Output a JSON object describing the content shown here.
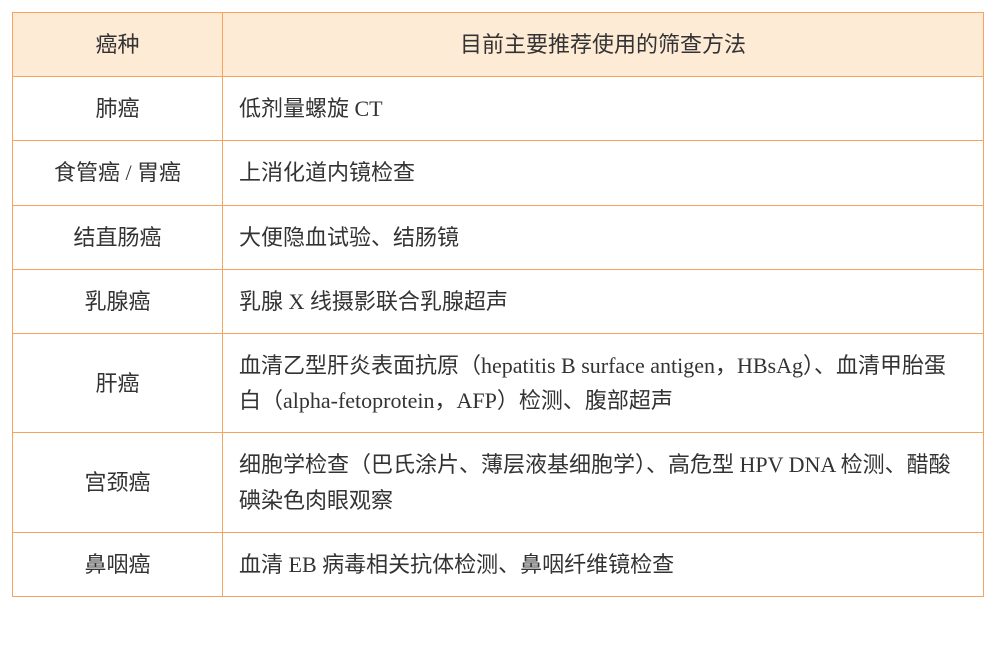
{
  "table": {
    "header_bg": "#feebd6",
    "border_color": "#f4a45e",
    "text_color": "#333333",
    "font_size": 22,
    "columns": [
      "癌种",
      "目前主要推荐使用的筛查方法"
    ],
    "rows": [
      {
        "cancer_type": "肺癌",
        "screening_method": "低剂量螺旋 CT"
      },
      {
        "cancer_type": "食管癌 / 胃癌",
        "screening_method": "上消化道内镜检查"
      },
      {
        "cancer_type": "结直肠癌",
        "screening_method": "大便隐血试验、结肠镜"
      },
      {
        "cancer_type": "乳腺癌",
        "screening_method": "乳腺 X 线摄影联合乳腺超声"
      },
      {
        "cancer_type": "肝癌",
        "screening_method": "血清乙型肝炎表面抗原（hepatitis B surface antigen，HBsAg）、血清甲胎蛋白（alpha-fetoprotein，AFP）检测、腹部超声"
      },
      {
        "cancer_type": "宫颈癌",
        "screening_method": "细胞学检查（巴氏涂片、薄层液基细胞学）、高危型 HPV DNA 检测、醋酸碘染色肉眼观察"
      },
      {
        "cancer_type": "鼻咽癌",
        "screening_method": "血清 EB 病毒相关抗体检测、鼻咽纤维镜检查"
      }
    ]
  }
}
